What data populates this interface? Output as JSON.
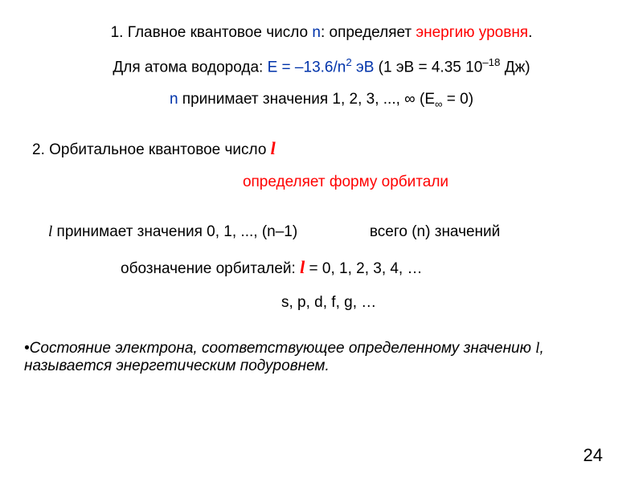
{
  "colors": {
    "red": "#ff0000",
    "blue": "#0033aa",
    "black": "#000000"
  },
  "fontsize": 19,
  "l1": {
    "a": "1. Главное квантовое число ",
    "n": "n",
    "b": ": определяет ",
    "c": "энергию уровня",
    "d": "."
  },
  "l2": {
    "a": "Для атома водорода: ",
    "b": "E = –13.6/n",
    "exp": "2",
    "c": " эВ",
    "d": "   (1 эВ = 4.35 10",
    "exp2": "–18",
    "e": " Дж)"
  },
  "l3": {
    "n": "n",
    "a": " принимает значения 1, 2, 3, ..., ∞       (E",
    "inf": "∞",
    "b": " = 0)"
  },
  "l4": {
    "a": "2. Орбитальное квантовое число ",
    "l": "l"
  },
  "l5": "определяет форму орбитали",
  "l6": {
    "l": "l",
    "a": " принимает значения  0, 1, ..., (n–1)",
    "gap": "                 ",
    "b": "всего (n) значений"
  },
  "l7": {
    "a": "обозначение орбиталей:     ",
    "l": "l",
    "b": "     = 0, 1, 2, 3, 4, …"
  },
  "l8": "s, p, d, f, g, …",
  "l9": {
    "bullet": "•",
    "a": "Состояние электрона, соответствующее определенному значению ",
    "l": "l",
    "b": ", называется энергетическим подуровнем."
  },
  "pagenum": "24"
}
